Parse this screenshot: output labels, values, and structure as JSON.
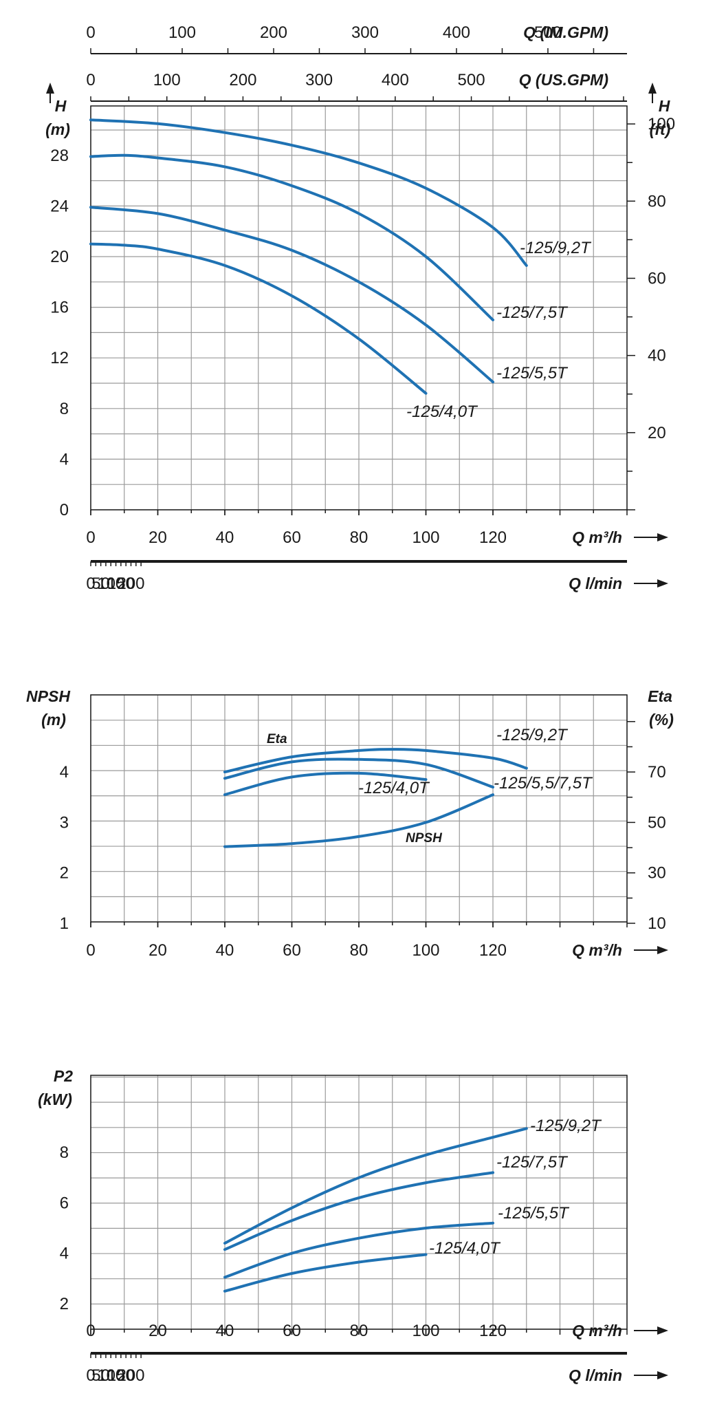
{
  "chart_data": [
    {
      "type": "line",
      "name": "head",
      "top_axes": [
        {
          "label": "Q (IM.GPM)",
          "ticks": [
            0,
            100,
            200,
            300,
            400,
            500
          ]
        },
        {
          "label": "Q (US.GPM)",
          "ticks": [
            0,
            100,
            200,
            300,
            400,
            500
          ]
        }
      ],
      "ylabel_left": [
        "H",
        "(m)"
      ],
      "ylabel_right": [
        "H",
        "(ft)"
      ],
      "yticks_left": [
        0,
        4,
        8,
        12,
        16,
        20,
        24,
        28
      ],
      "yticks_right": [
        20,
        40,
        60,
        80,
        100
      ],
      "xlabel": "Q m³/h",
      "xticks": [
        0,
        20,
        40,
        60,
        80,
        100,
        120
      ],
      "xlim": [
        0,
        160
      ],
      "ylim": [
        0,
        31
      ],
      "bottom_axis": {
        "label": "Q l/min",
        "ticks": [
          0,
          50,
          100,
          150,
          200
        ]
      },
      "grid": true,
      "series": [
        {
          "name": "-125/9,2T",
          "x": [
            0,
            20,
            40,
            60,
            80,
            100,
            120,
            130
          ],
          "y": [
            30.8,
            30.5,
            29.8,
            28.8,
            27.4,
            25.4,
            22.3,
            19.3
          ]
        },
        {
          "name": "-125/7,5T",
          "x": [
            0,
            10,
            20,
            40,
            60,
            80,
            100,
            120
          ],
          "y": [
            27.9,
            28.0,
            27.8,
            27.1,
            25.6,
            23.4,
            20.0,
            15.0
          ]
        },
        {
          "name": "-125/5,5T",
          "x": [
            0,
            20,
            40,
            60,
            80,
            100,
            120
          ],
          "y": [
            23.9,
            23.4,
            22.1,
            20.5,
            18.0,
            14.6,
            10.1
          ]
        },
        {
          "name": "-125/4,0T",
          "x": [
            0,
            10,
            20,
            40,
            60,
            80,
            100
          ],
          "y": [
            21.0,
            20.9,
            20.6,
            19.3,
            16.9,
            13.5,
            9.2
          ]
        }
      ]
    },
    {
      "type": "line",
      "name": "npsh-eta",
      "ylabel_left": [
        "NPSH",
        "(m)"
      ],
      "ylabel_right": [
        "Eta",
        "(%)"
      ],
      "yticks_left": [
        1,
        2,
        3,
        4
      ],
      "yticks_right": [
        10,
        30,
        50,
        70
      ],
      "xlabel": "Q m³/h",
      "xticks": [
        0,
        20,
        40,
        60,
        80,
        100,
        120
      ],
      "xlim": [
        0,
        160
      ],
      "ylim": [
        1,
        5
      ],
      "grid": true,
      "annotations": [
        "Eta",
        "NPSH"
      ],
      "series": [
        {
          "name": "-125/9,2T",
          "x": [
            40,
            60,
            80,
            90,
            100,
            120,
            130
          ],
          "y": [
            70,
            76,
            78.5,
            79,
            78.5,
            75.5,
            71.5
          ]
        },
        {
          "name": "-125/5,5/7,5T",
          "x": [
            40,
            60,
            80,
            100,
            120
          ],
          "y": [
            67.5,
            74,
            75,
            73,
            64
          ]
        },
        {
          "name": "-125/4,0T",
          "x": [
            40,
            60,
            80,
            100
          ],
          "y": [
            61,
            68,
            69.5,
            67
          ]
        },
        {
          "name": "NPSH",
          "x": [
            40,
            60,
            80,
            100,
            120
          ],
          "y": [
            2.52,
            2.58,
            2.72,
            3.0,
            3.55
          ]
        }
      ]
    },
    {
      "type": "line",
      "name": "power",
      "ylabel_left": [
        "P2",
        "(kW)"
      ],
      "yticks_left": [
        2,
        4,
        6,
        8
      ],
      "xlabel": "Q m³/h",
      "xticks": [
        0,
        20,
        40,
        60,
        80,
        100,
        120
      ],
      "xlim": [
        0,
        160
      ],
      "ylim": [
        2,
        10
      ],
      "bottom_axis": {
        "label": "Q l/min",
        "ticks": [
          0,
          50,
          100,
          150,
          200
        ]
      },
      "grid": true,
      "series": [
        {
          "name": "-125/9,2T",
          "x": [
            40,
            60,
            80,
            100,
            120,
            130
          ],
          "y": [
            4.4,
            5.8,
            7.0,
            7.9,
            8.6,
            8.95
          ]
        },
        {
          "name": "-125/7,5T",
          "x": [
            40,
            60,
            80,
            100,
            120
          ],
          "y": [
            4.15,
            5.3,
            6.2,
            6.8,
            7.2
          ]
        },
        {
          "name": "-125/5,5T",
          "x": [
            40,
            60,
            80,
            100,
            120
          ],
          "y": [
            3.05,
            4.0,
            4.6,
            5.0,
            5.2
          ]
        },
        {
          "name": "-125/4,0T",
          "x": [
            40,
            60,
            80,
            100
          ],
          "y": [
            2.5,
            3.2,
            3.65,
            3.95
          ]
        }
      ]
    }
  ],
  "colors": {
    "curve": "#1f72b3",
    "grid": "#9a9a9a",
    "axis": "#1a1a1a"
  }
}
